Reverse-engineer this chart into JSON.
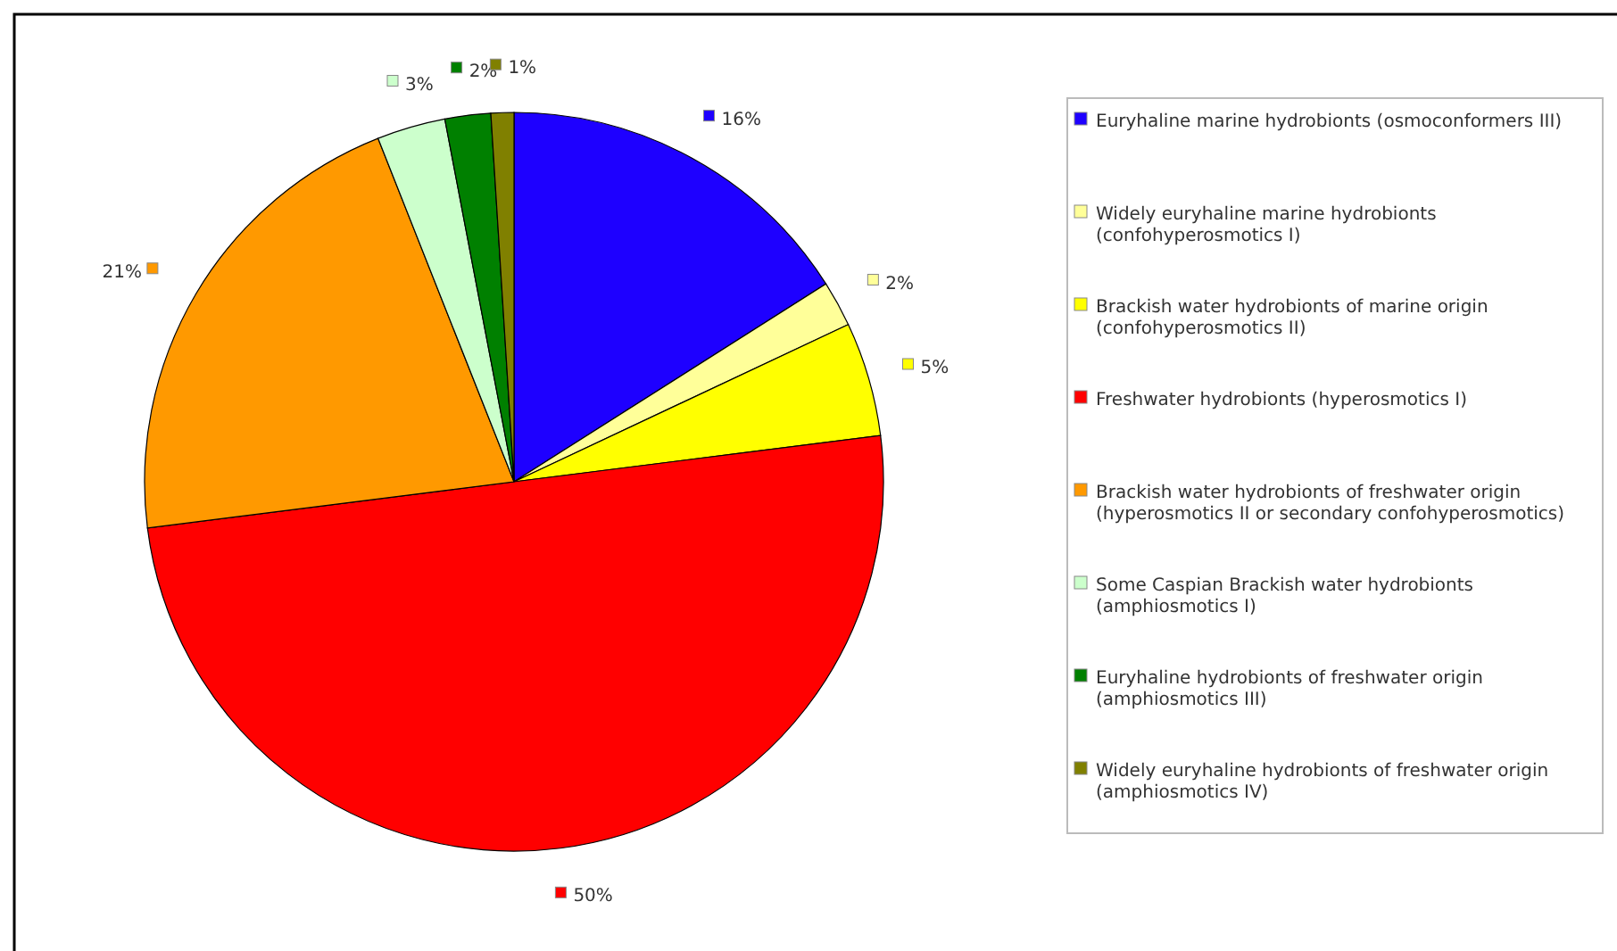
{
  "chart_data": {
    "type": "pie",
    "categories": [
      "Euryhaline marine hydrobionts (osmoconformers III)",
      "Widely euryhaline marine hydrobionts (confohyperosmotics I)",
      "Brackish water hydrobionts of marine origin (confohyperosmotics II)",
      "Freshwater hydrobionts (hyperosmotics I)",
      "Brackish water hydrobionts of freshwater origin (hyperosmotics II or secondary confohyperosmotics)",
      "Some Caspian Brackish water hydrobionts (amphiosmotics I)",
      "Euryhaline hydrobionts of freshwater origin (amphiosmotics III)",
      "Widely euryhaline hydrobionts of freshwater origin (amphiosmotics IV)"
    ],
    "values": [
      16,
      2,
      5,
      50,
      21,
      3,
      2,
      1
    ],
    "value_labels": [
      "16%",
      "2%",
      "5%",
      "50%",
      "21%",
      "3%",
      "2%",
      "1%"
    ],
    "colors": [
      "#1e00ff",
      "#ffff99",
      "#ffff00",
      "#ff0000",
      "#ff9900",
      "#ccffcc",
      "#008000",
      "#808000"
    ],
    "legend": "right"
  }
}
